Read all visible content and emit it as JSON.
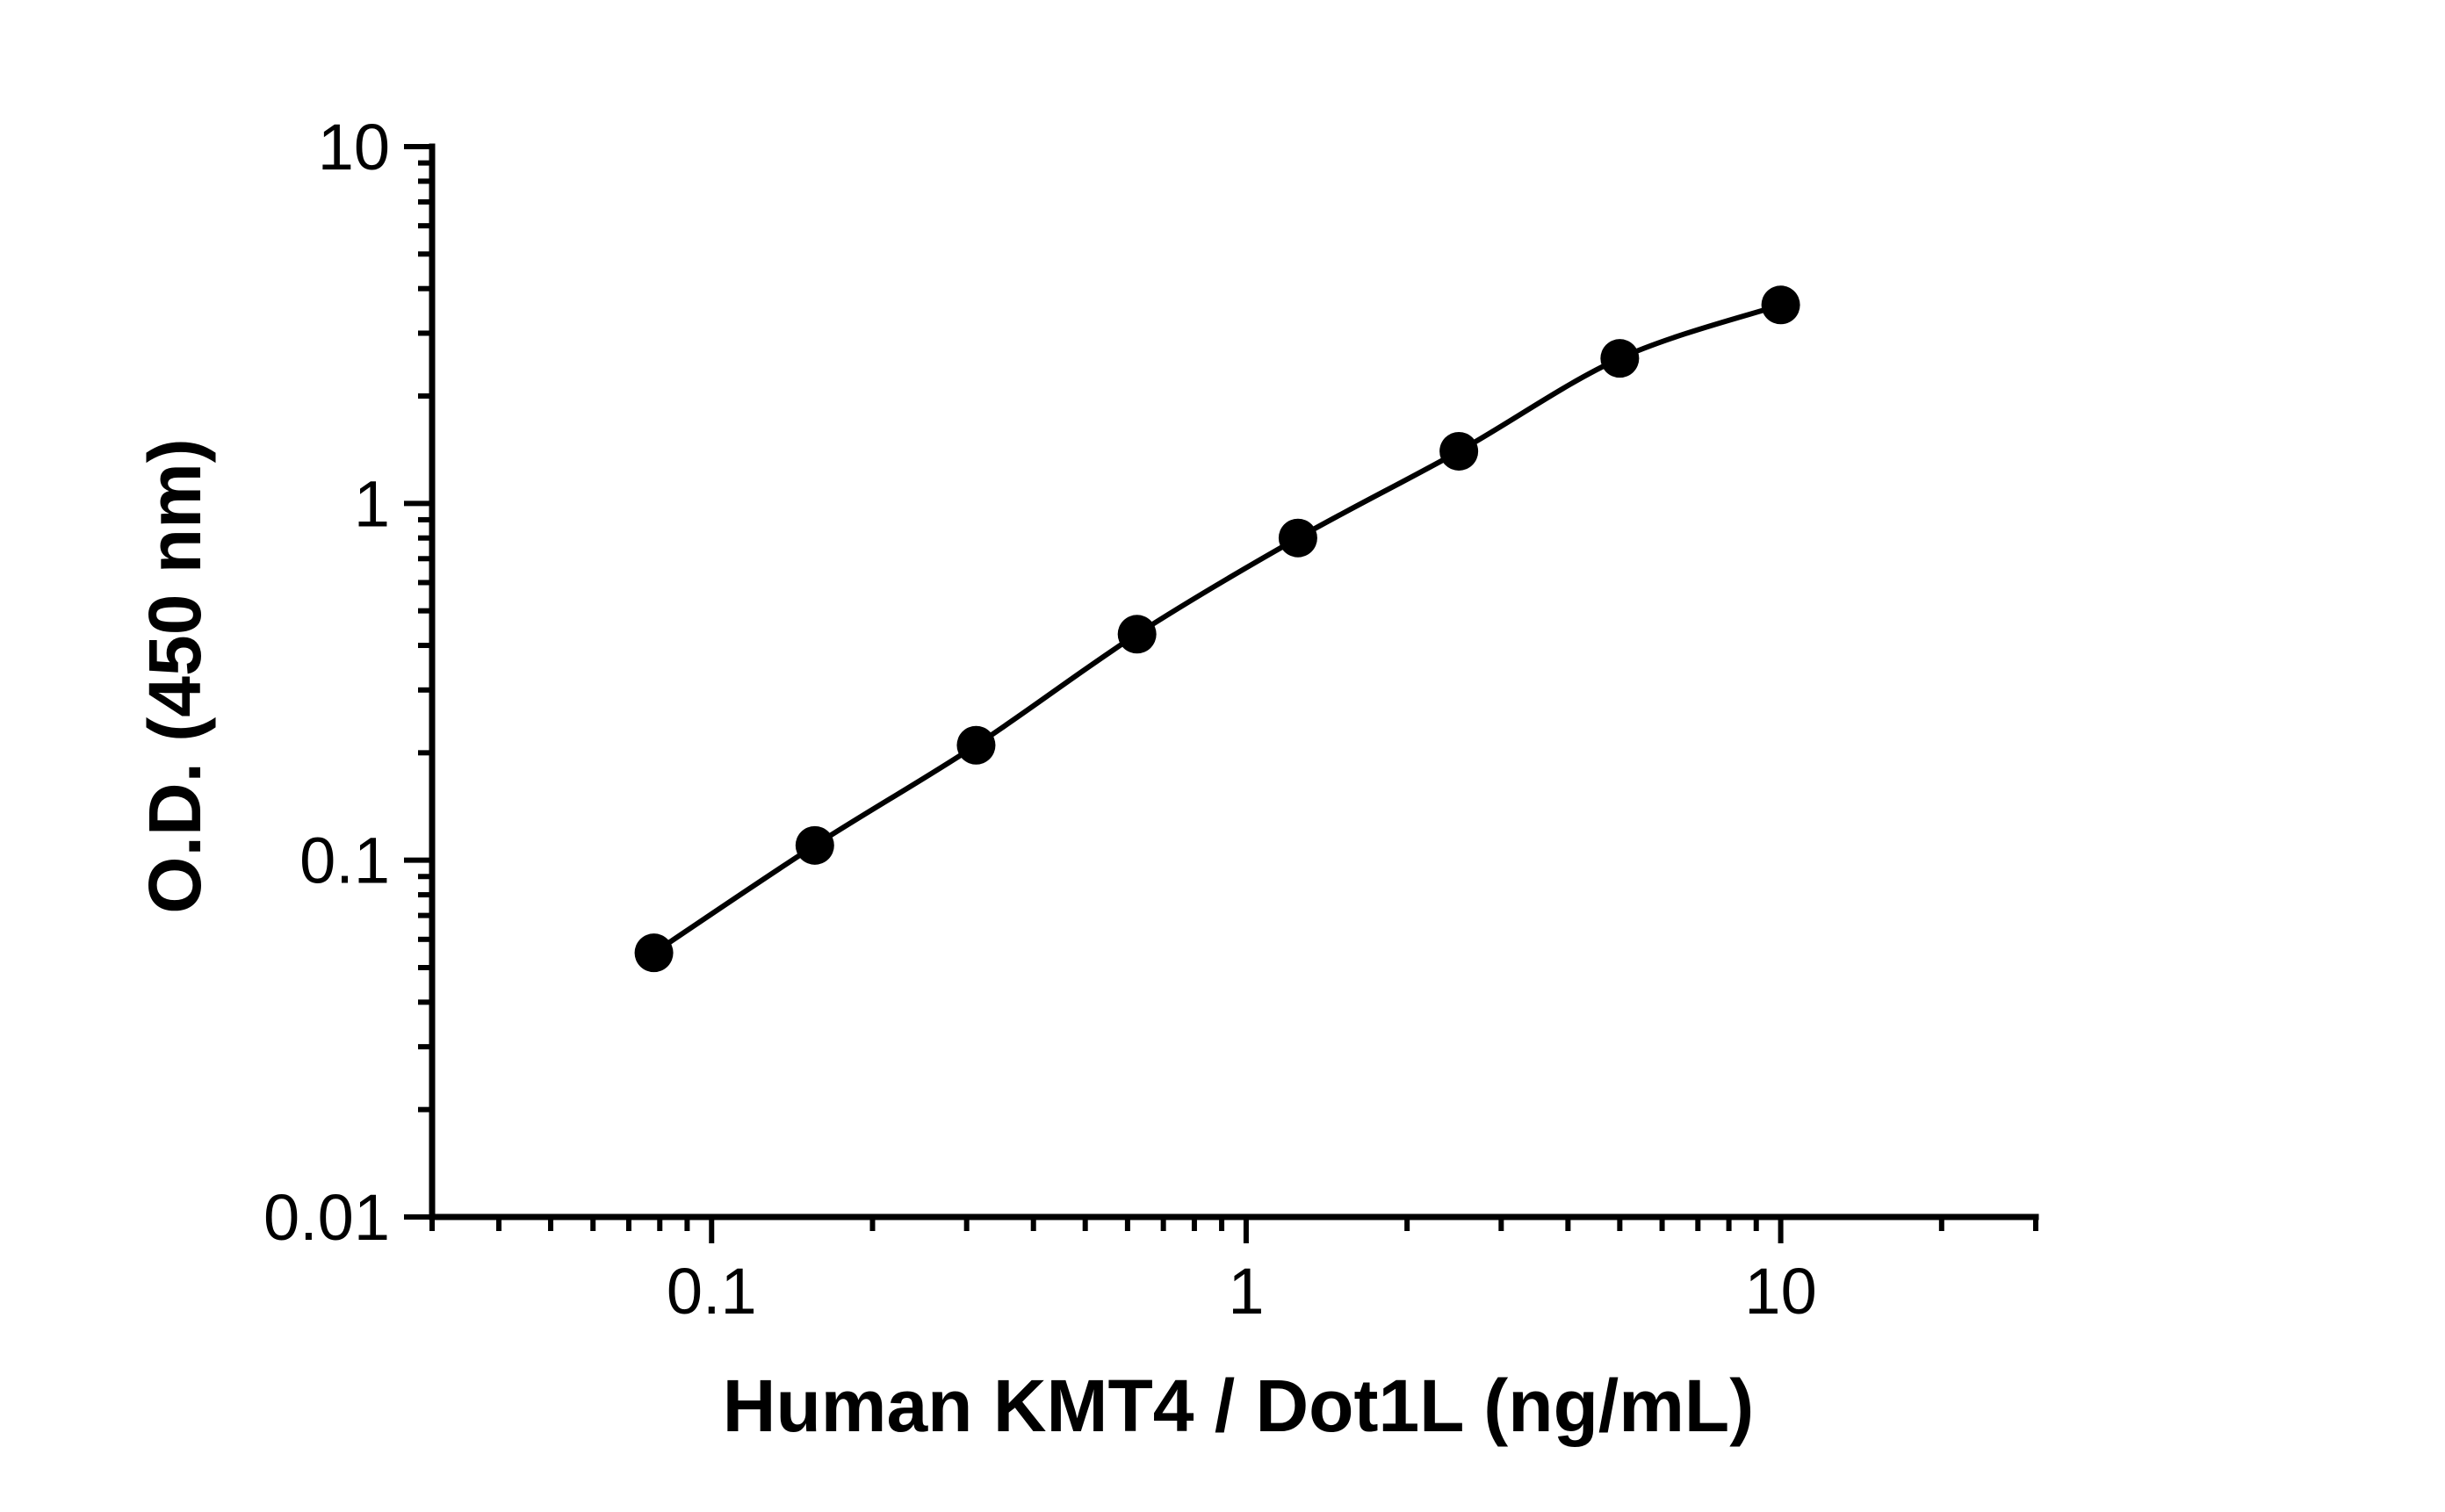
{
  "chart_data": {
    "type": "scatter",
    "title": "",
    "xlabel": "Human KMT4 / Dot1L (ng/mL)",
    "ylabel": "O.D. (450 nm)",
    "xscale": "log",
    "yscale": "log",
    "xlim": [
      0.03,
      30
    ],
    "ylim": [
      0.01,
      10
    ],
    "xticks": [
      0.1,
      1,
      10
    ],
    "xtick_labels": [
      "0.1",
      "1",
      "10"
    ],
    "yticks": [
      0.01,
      0.1,
      1,
      10
    ],
    "ytick_labels": [
      "0.01",
      "0.1",
      "1",
      "10"
    ],
    "grid": false,
    "legend": "none",
    "fit_line": "smooth curve through points",
    "colors": {
      "marker": "#000000",
      "line": "#000000",
      "axis": "#000000"
    },
    "series": [
      {
        "x": [
          0.078,
          0.156,
          0.3125,
          0.625,
          1.25,
          2.5,
          5,
          10
        ],
        "y": [
          0.055,
          0.11,
          0.21,
          0.43,
          0.8,
          1.4,
          2.55,
          3.6
        ]
      }
    ]
  }
}
